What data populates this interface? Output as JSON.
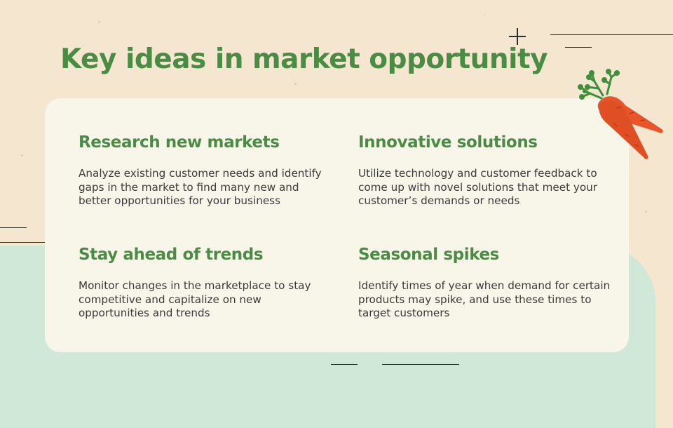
{
  "slide": {
    "title": "Key ideas in market opportunity"
  },
  "ideas": [
    {
      "heading": "Research new markets",
      "text": "Analyze existing customer needs and identify gaps in the market to find many new and better opportunities for your business"
    },
    {
      "heading": "Innovative solutions",
      "text": "Utilize technology and customer feedback to come up with novel solutions that meet your customer’s demands or needs"
    },
    {
      "heading": "Stay ahead of trends",
      "text": "Monitor changes in the marketplace to stay competitive and capitalize on new opportunities and trends"
    },
    {
      "heading": "Seasonal spikes",
      "text": "Identify times of year when demand for certain products may spike, and use these times to target customers"
    }
  ],
  "colors": {
    "background": "#f5e6d0",
    "accent_green": "#4a8c44",
    "mint": "#cfe8d8",
    "card": "#f8f5e9",
    "carrot": "#e8552a"
  },
  "icons": [
    "plus-icon",
    "carrot-icon"
  ]
}
